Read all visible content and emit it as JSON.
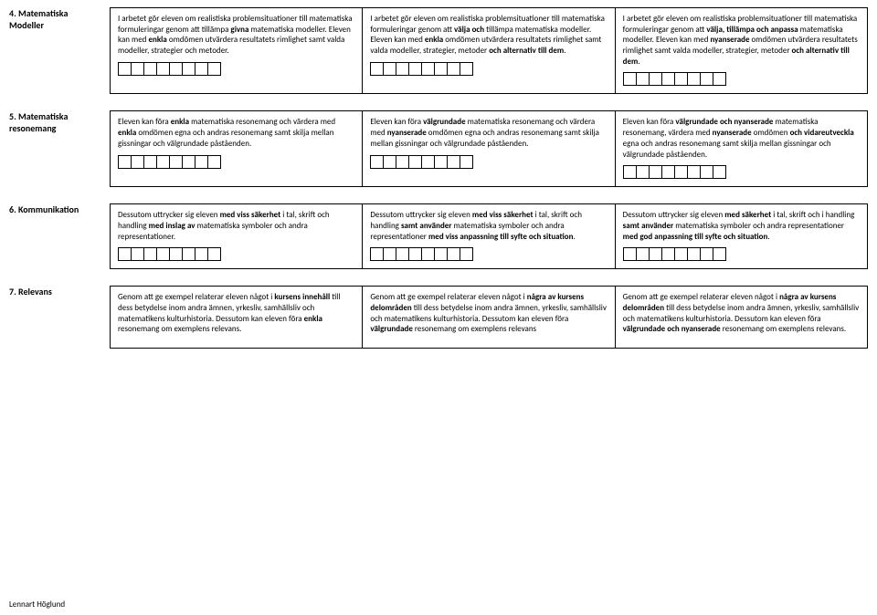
{
  "sections": [
    {
      "title": "4. Matematiska\nModeller",
      "cols": [
        {
          "html": "I arbetet gör eleven om realistiska problemsituationer till matematiska formuleringar genom att tillämpa <b>givna</b> matematiska modeller. Eleven kan med <b>enkla</b> omdömen utvärdera resultatets rimlighet samt valda modeller, strategier och metoder.",
          "boxes": 8
        },
        {
          "html": "I arbetet gör eleven om realistiska problemsituationer till matematiska formuleringar genom att <b>välja och</b> tillämpa matematiska modeller. Eleven kan med <b>enkla</b> omdömen utvärdera resultatets rimlighet samt valda modeller, strategier, metoder <b>och alternativ till dem</b>.",
          "boxes": 8
        },
        {
          "html": "I arbetet gör eleven om realistiska problemsituationer till matematiska formuleringar genom att <b>välja, tillämpa och anpassa</b> matematiska modeller. Eleven kan med <b>nyanserade</b> omdömen utvärdera resultatets rimlighet samt valda modeller, strategier, metoder <b>och alternativ till dem</b>.",
          "boxes": 8
        }
      ]
    },
    {
      "title": "5. Matematiska\nresonemang",
      "cols": [
        {
          "html": "Eleven kan föra <b>enkla</b> matematiska resonemang och värdera med <b>enkla</b> omdömen egna och andras resonemang samt skilja mellan gissningar och välgrundade påståenden.",
          "boxes": 8
        },
        {
          "html": "Eleven kan föra <b>välgrundade</b> matematiska resonemang och värdera med <b>nyanserade</b> omdömen egna och andras resonemang samt skilja mellan gissningar och välgrundade påståenden.",
          "boxes": 8
        },
        {
          "html": "Eleven kan föra <b>välgrundade och nyanserade</b> matematiska resonemang, värdera med <b>nyanserade</b> omdömen <b>och vidareutveckla</b> egna och andras resonemang samt skilja mellan gissningar och välgrundade påståenden.",
          "boxes": 8
        }
      ]
    },
    {
      "title": "6. Kommunikation",
      "cols": [
        {
          "html": "Dessutom uttrycker sig eleven <b>med viss säkerhet</b> i tal, skrift och handling <b>med inslag av</b> matematiska symboler och andra representationer.",
          "boxes": 8
        },
        {
          "html": "Dessutom uttrycker sig eleven <b>med viss säkerhet</b> i tal, skrift och handling <b>samt använder</b> matematiska symboler och andra representationer <b>med viss anpassning till syfte och situation</b>.",
          "boxes": 8
        },
        {
          "html": "Dessutom uttrycker sig eleven <b>med säkerhet</b> i tal, skrift och i handling <b>samt använder</b> matematiska symboler och andra representationer <b>med god anpassning till syfte och situation</b>.",
          "boxes": 8
        }
      ]
    },
    {
      "title": "7. Relevans",
      "cols": [
        {
          "html": "Genom att ge exempel relaterar eleven något i <b>kursens innehåll</b> till dess betydelse inom andra ämnen, yrkesliv, samhällsliv och matematikens kulturhistoria. Dessutom kan eleven föra <b>enkla</b> resonemang om exemplens relevans.",
          "boxes": 0
        },
        {
          "html": "Genom att ge exempel relaterar eleven något i <b>några av kursens delområden</b> till dess betydelse inom andra ämnen, yrkesliv, samhällsliv och matematikens kulturhistoria. Dessutom kan eleven föra <b>välgrundade</b> resonemang om exemplens relevans",
          "boxes": 0
        },
        {
          "html": "Genom att ge exempel relaterar eleven något i <b>några av kursens delområden</b> till dess betydelse inom andra ämnen, yrkesliv, samhällsliv och matematikens kulturhistoria. Dessutom kan eleven föra <b>välgrundade och nyanserade</b> resonemang om exemplens relevans.",
          "boxes": 0
        }
      ]
    }
  ],
  "footer": "Lennart Höglund"
}
